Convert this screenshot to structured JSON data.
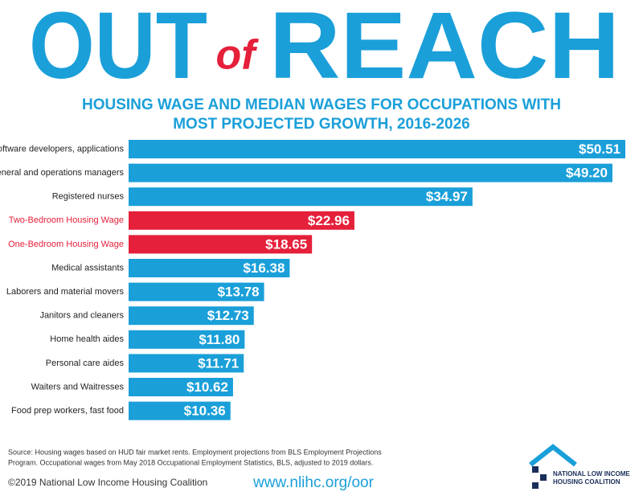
{
  "chart_data": {
    "type": "hbar",
    "title": [
      "OUT",
      "of",
      "REACH"
    ],
    "subtitle": [
      "HOUSING WAGE AND MEDIAN WAGES FOR OCCUPATIONS WITH",
      "MOST PROJECTED GROWTH, 2016-2026"
    ],
    "categories": [
      "Software developers, applications",
      "General and operations managers",
      "Registered nurses",
      "Two-Bedroom Housing Wage",
      "One-Bedroom Housing Wage",
      "Medical assistants",
      "Laborers and material movers",
      "Janitors and cleaners",
      "Home health aides",
      "Personal care aides",
      "Waiters and Waitresses",
      "Food prep workers, fast food"
    ],
    "values": [
      50.51,
      49.2,
      34.97,
      22.96,
      18.65,
      16.38,
      13.78,
      12.73,
      11.8,
      11.71,
      10.62,
      10.36
    ],
    "value_labels": [
      "$50.51",
      "$49.20",
      "$34.97",
      "$22.96",
      "$18.65",
      "$16.38",
      "$13.78",
      "$12.73",
      "$11.80",
      "$11.71",
      "$10.62",
      "$10.36"
    ],
    "colors": [
      "#1a9fd9",
      "#1a9fd9",
      "#1a9fd9",
      "#e5203a",
      "#e5203a",
      "#1a9fd9",
      "#1a9fd9",
      "#1a9fd9",
      "#1a9fd9",
      "#1a9fd9",
      "#1a9fd9",
      "#1a9fd9"
    ],
    "label_colors": [
      "#222",
      "#222",
      "#222",
      "#e5203a",
      "#e5203a",
      "#222",
      "#222",
      "#222",
      "#222",
      "#222",
      "#222",
      "#222"
    ]
  },
  "source": [
    "Source: Housing wages based on HUD fair market rents. Employment projections from BLS Employment Projections",
    "Program.  Occupational wages from May 2018 Occupational Employment Statistics, BLS, adjusted to 2019 dollars."
  ],
  "copyright": "©2019 National Low Income Housing Coalition",
  "url": "www.nlihc.org/oor",
  "logo": [
    "NATIONAL LOW INCOME",
    "HOUSING COALITION"
  ]
}
